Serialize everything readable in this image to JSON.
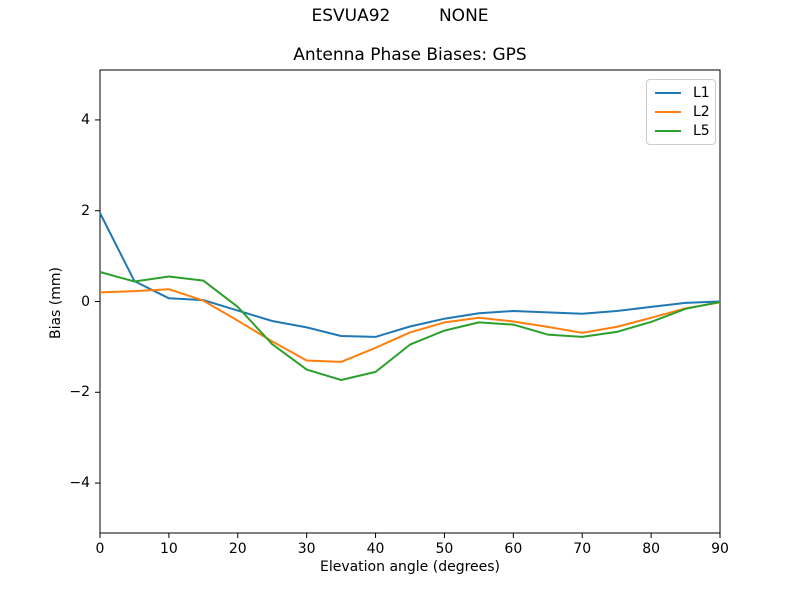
{
  "chart_data": {
    "type": "line",
    "suptitle": "ESVUA92         NONE",
    "title": "Antenna Phase Biases: GPS",
    "xlabel": "Elevation angle (degrees)",
    "ylabel": "Bias (mm)",
    "xlim": [
      0,
      90
    ],
    "ylim": [
      -5.1,
      5.1
    ],
    "grid": false,
    "axis_color": "#000000",
    "legend": {
      "position": "upper right",
      "border_color": "#cccccc"
    },
    "x_ticks": [
      0,
      10,
      20,
      30,
      40,
      50,
      60,
      70,
      80,
      90
    ],
    "x_tick_labels": [
      "0",
      "10",
      "20",
      "30",
      "40",
      "50",
      "60",
      "70",
      "80",
      "90"
    ],
    "y_ticks": [
      -4,
      -2,
      0,
      2,
      4
    ],
    "y_tick_labels": [
      "−4",
      "−2",
      "0",
      "2",
      "4"
    ],
    "x": [
      0,
      5,
      10,
      15,
      20,
      25,
      30,
      35,
      40,
      45,
      50,
      55,
      60,
      65,
      70,
      75,
      80,
      85,
      90
    ],
    "series": [
      {
        "name": "L1",
        "color": "#1f77b4",
        "values": [
          1.95,
          0.45,
          0.07,
          0.03,
          -0.2,
          -0.43,
          -0.57,
          -0.76,
          -0.78,
          -0.55,
          -0.38,
          -0.26,
          -0.21,
          -0.24,
          -0.27,
          -0.21,
          -0.12,
          -0.03,
          0.0
        ]
      },
      {
        "name": "L2",
        "color": "#ff7f0e",
        "values": [
          0.2,
          0.23,
          0.27,
          0.02,
          -0.42,
          -0.88,
          -1.3,
          -1.33,
          -1.02,
          -0.68,
          -0.46,
          -0.36,
          -0.44,
          -0.56,
          -0.69,
          -0.56,
          -0.36,
          -0.15,
          -0.02
        ]
      },
      {
        "name": "L5",
        "color": "#2ca02c",
        "values": [
          0.65,
          0.44,
          0.55,
          0.46,
          -0.12,
          -0.94,
          -1.5,
          -1.73,
          -1.55,
          -0.95,
          -0.64,
          -0.46,
          -0.51,
          -0.73,
          -0.78,
          -0.67,
          -0.45,
          -0.16,
          -0.01
        ]
      }
    ]
  }
}
